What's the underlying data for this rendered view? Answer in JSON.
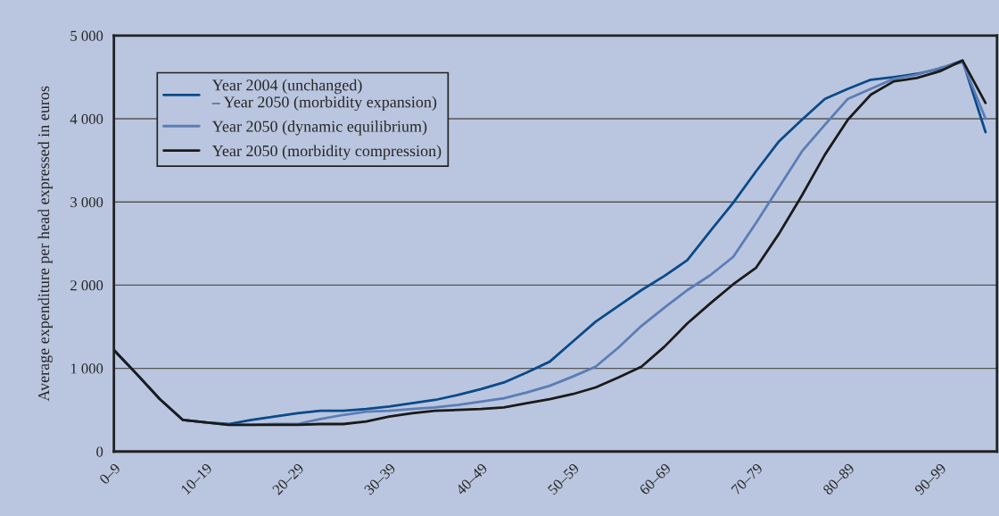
{
  "chart_data": {
    "type": "line",
    "ylabel": "Average expenditure per head expressed in euros",
    "categories": [
      "0–9",
      null,
      null,
      null,
      "10–19",
      null,
      null,
      null,
      "20–29",
      null,
      null,
      null,
      "30–39",
      null,
      null,
      null,
      "40–49",
      null,
      null,
      null,
      "50–59",
      null,
      null,
      null,
      "60–69",
      null,
      null,
      null,
      "70–79",
      null,
      null,
      null,
      "80–89",
      null,
      null,
      null,
      "90–99",
      null,
      null
    ],
    "series": [
      {
        "name": "Year 2004 (unchanged)\n– Year 2050 (morbidity expansion)",
        "color": "#0a4a8a",
        "values": [
          1220,
          930,
          630,
          380,
          350,
          330,
          380,
          420,
          460,
          490,
          490,
          510,
          540,
          580,
          620,
          680,
          750,
          830,
          950,
          1080,
          1320,
          1560,
          1750,
          1940,
          2110,
          2300,
          2650,
          2990,
          3370,
          3730,
          3990,
          4240,
          4360,
          4470,
          4500,
          4540,
          4600,
          4700,
          3840
        ]
      },
      {
        "name": "Year 2050 (dynamic equilibrium)",
        "color": "#5b7db5",
        "values": [
          1220,
          930,
          630,
          380,
          350,
          320,
          320,
          330,
          330,
          390,
          440,
          480,
          490,
          510,
          530,
          560,
          600,
          640,
          710,
          790,
          900,
          1020,
          1250,
          1510,
          1730,
          1940,
          2120,
          2340,
          2750,
          3180,
          3610,
          3930,
          4240,
          4360,
          4480,
          4530,
          4610,
          4680,
          4000
        ]
      },
      {
        "name": "Year 2050 (morbidity compression)",
        "color": "#1a1a1a",
        "values": [
          1220,
          930,
          630,
          380,
          350,
          320,
          320,
          320,
          320,
          330,
          330,
          360,
          420,
          460,
          490,
          500,
          510,
          530,
          580,
          630,
          690,
          770,
          890,
          1020,
          1260,
          1540,
          1780,
          2010,
          2210,
          2620,
          3080,
          3570,
          3990,
          4290,
          4450,
          4490,
          4570,
          4700,
          4190
        ]
      }
    ],
    "ylim": [
      0,
      5000
    ],
    "yticks": [
      0,
      {
        "value": 1000,
        "label": "1 000"
      },
      {
        "value": 2000,
        "label": "2 000"
      },
      {
        "value": 3000,
        "label": "3 000"
      },
      {
        "value": 4000,
        "label": "4 000"
      },
      {
        "value": 5000,
        "label": "5 000"
      }
    ],
    "grid": "y",
    "legend": "top left",
    "line_style": "solid",
    "marker": "none"
  }
}
